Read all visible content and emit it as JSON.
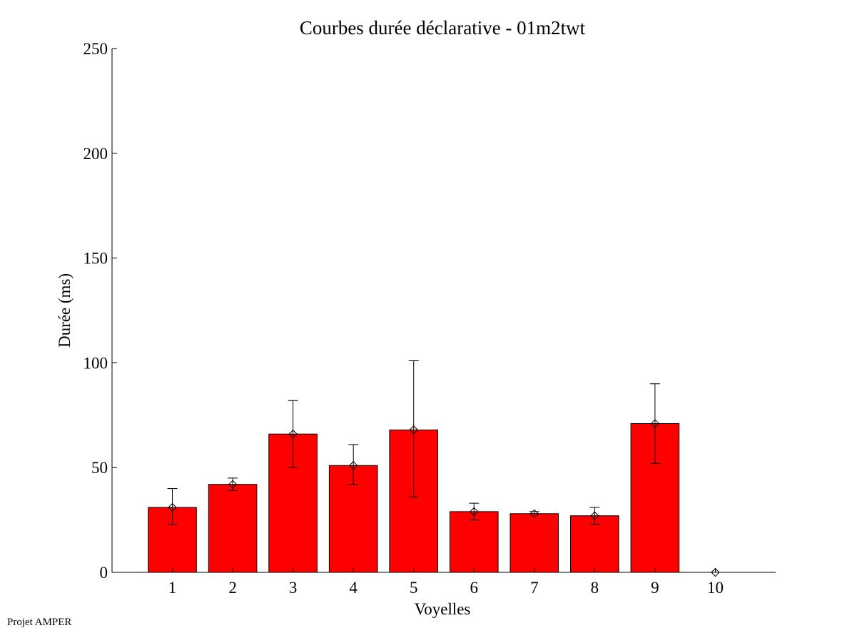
{
  "chart_data": {
    "type": "bar",
    "title": "Courbes durée déclarative - 01m2twt",
    "xlabel": "Voyelles",
    "ylabel": "Durée (ms)",
    "ylim": [
      0,
      250
    ],
    "yticks": [
      0,
      50,
      100,
      150,
      200,
      250
    ],
    "xlim": [
      0,
      11
    ],
    "categories": [
      "1",
      "2",
      "3",
      "4",
      "5",
      "6",
      "7",
      "8",
      "9",
      "10"
    ],
    "values": [
      31,
      42,
      66,
      51,
      68,
      29,
      28,
      27,
      71,
      0
    ],
    "error_low": [
      23,
      39,
      50,
      42,
      36,
      25,
      28,
      23,
      52,
      0
    ],
    "error_high": [
      40,
      45,
      82,
      61,
      101,
      33,
      29,
      31,
      90,
      0
    ],
    "bar_color": "#ff0000",
    "grid": false,
    "markers": "diamond"
  },
  "footer": {
    "text": "Projet AMPER"
  }
}
